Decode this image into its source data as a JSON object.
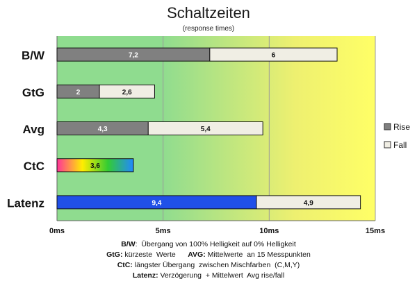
{
  "chart_data": {
    "type": "bar",
    "orientation": "horizontal",
    "stacked": true,
    "title": "Schaltzeiten",
    "subtitle": "(response times)",
    "categories": [
      "B/W",
      "GtG",
      "Avg",
      "CtC",
      "Latenz"
    ],
    "series": [
      {
        "name": "Rise",
        "values": [
          7.2,
          2,
          4.3,
          3.6,
          9.4
        ],
        "labels": [
          "7,2",
          "2",
          "4,3",
          "3,6",
          "9,4"
        ]
      },
      {
        "name": "Fall",
        "values": [
          6,
          2.6,
          5.4,
          null,
          4.9
        ],
        "labels": [
          "6",
          "2,6",
          "5,4",
          "",
          "4,9"
        ]
      }
    ],
    "xlim": [
      0,
      15
    ],
    "xticks": [
      0,
      5,
      10,
      15
    ],
    "xtick_labels": [
      "0ms",
      "5ms",
      "10ms",
      "15ms"
    ],
    "grid": true,
    "legend": "right",
    "background_gradient": [
      "#8fdc8f",
      "#eef070",
      "#ffff66"
    ],
    "colors": {
      "rise": "#808080",
      "fall": "#f0eee4",
      "latenz_rise": "#2050e8",
      "ctc_gradient": [
        "#ff3399",
        "#ffee00",
        "#33cc33",
        "#2288ff"
      ]
    }
  },
  "footnotes": [
    {
      "bold": "B/W",
      "text": ":  Übergang von 100% Helligkeit auf 0% Helligkeit"
    },
    {
      "bold": "GtG:",
      "text": " kürzeste  Werte",
      "bold2": "AVG:",
      "text2": " Mittelwerte  an 15 Messpunkten"
    },
    {
      "bold": "CtC:",
      "text": " längster Übergang  zwischen Mischfarben  (C,M,Y)"
    },
    {
      "bold": "Latenz:",
      "text": " Verzögerung  + Mittelwert  Avg rise/fall"
    }
  ]
}
